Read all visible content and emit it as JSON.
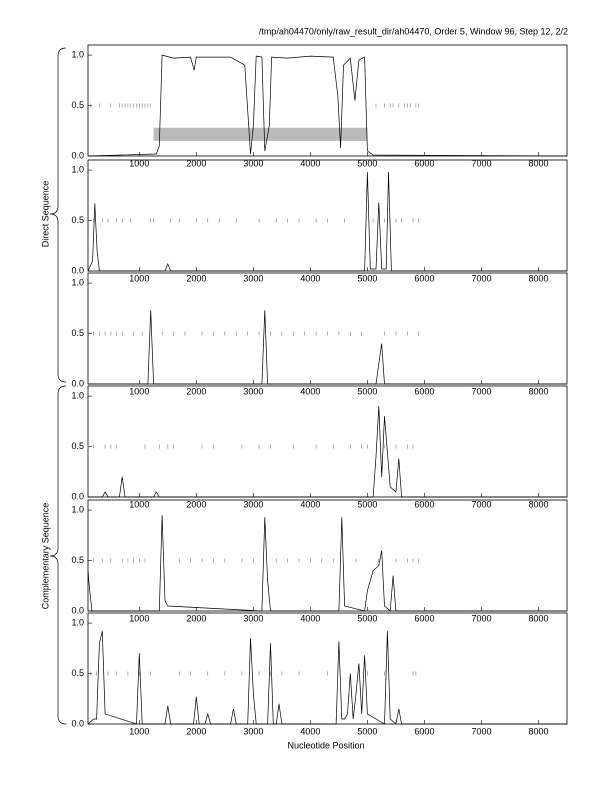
{
  "title": "/tmp/ah04470/only/raw_result_dir/ah04470, Order 5, Window 96, Step 12, 2/2",
  "groups": [
    "Direct Sequence",
    "Complementary Sequence"
  ],
  "xlabel": "Nucleotide Position",
  "chart_data": [
    {
      "type": "line",
      "x": [
        100,
        1300,
        1350,
        1400,
        1600,
        1900,
        1960,
        2000,
        2600,
        2850,
        2950,
        3000,
        3050,
        3150,
        3200,
        3280,
        3320,
        3600,
        4000,
        4400,
        4480,
        4530,
        4580,
        4700,
        4780,
        4850,
        4950,
        5000,
        5100,
        8500
      ],
      "values": [
        0,
        0.02,
        0.1,
        1.0,
        0.97,
        0.98,
        0.85,
        0.98,
        0.98,
        0.9,
        0.02,
        0.3,
        0.99,
        0.98,
        0.05,
        0.3,
        0.98,
        0.97,
        0.99,
        0.98,
        0.6,
        0.08,
        0.9,
        0.97,
        0.55,
        0.95,
        0.98,
        0.05,
        0.01,
        0
      ],
      "rug": [
        150,
        300,
        500,
        650,
        700,
        750,
        800,
        850,
        900,
        950,
        1000,
        1050,
        1100,
        1150,
        1200,
        5150,
        5300,
        5400,
        5450,
        5550,
        5650,
        5700,
        5750,
        5850,
        5900
      ],
      "rug_level": 0.5,
      "highlight": {
        "xlim": [
          1250,
          5000
        ],
        "ylim": [
          0.15,
          0.28
        ]
      },
      "xlim": [
        100,
        8500
      ],
      "ylim": [
        0,
        1.1
      ],
      "xticks": [
        1000,
        2000,
        3000,
        4000,
        5000,
        6000,
        7000,
        8000
      ],
      "yticks": [
        {
          "value": 0,
          "label": "0.0"
        },
        {
          "value": 0.5,
          "label": "0.5"
        },
        {
          "value": 1,
          "label": "1.0"
        }
      ],
      "color": "#000000"
    },
    {
      "type": "line",
      "x": [
        100,
        180,
        220,
        260,
        300,
        1450,
        1500,
        1550,
        4950,
        5000,
        5050,
        5150,
        5200,
        5250,
        5330,
        5370,
        5420,
        8500
      ],
      "values": [
        0,
        0.1,
        0.67,
        0.2,
        0,
        0,
        0.07,
        0,
        0,
        0.98,
        0.02,
        0.02,
        0.68,
        0.02,
        0.02,
        0.98,
        0,
        0
      ],
      "rug": [
        200,
        350,
        450,
        600,
        700,
        850,
        1200,
        1250,
        1550,
        1700,
        2000,
        2200,
        2400,
        2700,
        3100,
        3400,
        3600,
        3800,
        4100,
        4300,
        4600,
        5100,
        5300,
        5500,
        5600,
        5800,
        5900
      ],
      "rug_level": 0.5,
      "xlim": [
        100,
        8500
      ],
      "ylim": [
        0,
        1.1
      ],
      "xticks": [
        1000,
        2000,
        3000,
        4000,
        5000,
        6000,
        7000,
        8000
      ],
      "yticks": [
        {
          "value": 0,
          "label": "0.0"
        },
        {
          "value": 0.5,
          "label": "0.5"
        },
        {
          "value": 1,
          "label": "1.0"
        }
      ],
      "color": "#000000"
    },
    {
      "type": "line",
      "x": [
        100,
        1150,
        1200,
        1250,
        3150,
        3200,
        3250,
        5150,
        5200,
        5250,
        5300,
        8500
      ],
      "values": [
        0,
        0,
        0.73,
        0,
        0,
        0.73,
        0,
        0,
        0.2,
        0.4,
        0,
        0
      ],
      "rug": [
        200,
        300,
        400,
        500,
        600,
        700,
        900,
        1050,
        1400,
        1600,
        1800,
        2100,
        2300,
        2500,
        2700,
        2900,
        3100,
        3300,
        3500,
        3700,
        3900,
        4100,
        4300,
        4500,
        4700,
        4900,
        5300,
        5500,
        5700,
        5900
      ],
      "rug_level": 0.5,
      "xlim": [
        100,
        8500
      ],
      "ylim": [
        0,
        1.1
      ],
      "xticks": [
        1000,
        2000,
        3000,
        4000,
        5000,
        6000,
        7000,
        8000
      ],
      "yticks": [
        {
          "value": 0,
          "label": "0.0"
        },
        {
          "value": 0.5,
          "label": "0.5"
        },
        {
          "value": 1,
          "label": "1.0"
        }
      ],
      "color": "#000000"
    },
    {
      "type": "line",
      "x": [
        100,
        350,
        400,
        450,
        650,
        700,
        750,
        1250,
        1300,
        1350,
        5100,
        5150,
        5200,
        5250,
        5300,
        5400,
        5500,
        5550,
        5600,
        8500
      ],
      "values": [
        0,
        0,
        0.05,
        0,
        0,
        0.2,
        0,
        0,
        0.05,
        0,
        0,
        0.4,
        0.9,
        0.2,
        0.8,
        0.1,
        0.05,
        0.38,
        0,
        0
      ],
      "rug": [
        100,
        200,
        400,
        500,
        600,
        1100,
        1350,
        1500,
        1600,
        2100,
        2300,
        2800,
        3100,
        3300,
        3700,
        4100,
        4400,
        4700,
        4900,
        5000,
        5300,
        5500,
        5700,
        5800
      ],
      "rug_level": 0.5,
      "xlim": [
        100,
        8500
      ],
      "ylim": [
        0,
        1.1
      ],
      "xticks": [
        1000,
        2000,
        3000,
        4000,
        5000,
        6000,
        7000,
        8000
      ],
      "yticks": [
        {
          "value": 0,
          "label": "0.0"
        },
        {
          "value": 0.5,
          "label": "0.5"
        },
        {
          "value": 1,
          "label": "1.0"
        }
      ],
      "color": "#000000"
    },
    {
      "type": "line",
      "x": [
        100,
        130,
        170,
        1350,
        1400,
        1450,
        1500,
        3150,
        3200,
        3250,
        3300,
        4500,
        4550,
        4600,
        4950,
        5000,
        5100,
        5200,
        5250,
        5300,
        5400,
        5450,
        5500,
        8500
      ],
      "values": [
        0.4,
        0.2,
        0,
        0,
        0.95,
        0.1,
        0.05,
        0,
        0.93,
        0.3,
        0,
        0,
        0.93,
        0.05,
        0,
        0.2,
        0.4,
        0.45,
        0.6,
        0.05,
        0,
        0.35,
        0,
        0
      ],
      "rug": [
        200,
        350,
        500,
        700,
        800,
        900,
        1000,
        1100,
        1700,
        1900,
        2100,
        2300,
        2500,
        2800,
        3000,
        3400,
        3600,
        3800,
        4000,
        4200,
        4400,
        4800,
        5200,
        5500,
        5700,
        5800,
        5900
      ],
      "rug_level": 0.5,
      "xlim": [
        100,
        8500
      ],
      "ylim": [
        0,
        1.1
      ],
      "xticks": [
        1000,
        2000,
        3000,
        4000,
        5000,
        6000,
        7000,
        8000
      ],
      "yticks": [
        {
          "value": 0,
          "label": "0.0"
        },
        {
          "value": 0.5,
          "label": "0.5"
        },
        {
          "value": 1,
          "label": "1.0"
        }
      ],
      "color": "#000000"
    },
    {
      "type": "line",
      "x": [
        100,
        200,
        250,
        300,
        350,
        400,
        950,
        1000,
        1050,
        1450,
        1500,
        1550,
        1950,
        2000,
        2050,
        2150,
        2200,
        2250,
        2600,
        2650,
        2700,
        2900,
        2950,
        3000,
        3050,
        3250,
        3300,
        3350,
        3400,
        3450,
        3500,
        4450,
        4500,
        4550,
        4600,
        4650,
        4700,
        4750,
        4800,
        4850,
        4900,
        4950,
        5000,
        5300,
        5350,
        5400,
        5500,
        5550,
        5600,
        8500
      ],
      "values": [
        0,
        0.05,
        0.05,
        0.8,
        0.92,
        0.1,
        0,
        0.7,
        0,
        0,
        0.18,
        0,
        0,
        0.27,
        0,
        0,
        0.1,
        0,
        0,
        0.15,
        0,
        0,
        0.85,
        0.3,
        0,
        0,
        0.8,
        0,
        0,
        0.2,
        0,
        0,
        0.82,
        0.05,
        0.05,
        0.1,
        0.5,
        0.05,
        0.3,
        0.6,
        0.1,
        0.68,
        0.1,
        0,
        0.92,
        0.05,
        0,
        0.15,
        0,
        0
      ],
      "rug": [
        150,
        250,
        450,
        600,
        800,
        1000,
        1200,
        1700,
        1900,
        2200,
        2500,
        2800,
        3100,
        3300,
        3500,
        3800,
        4300,
        5000,
        5300,
        5800,
        5850
      ],
      "rug_level": 0.5,
      "xlim": [
        100,
        8500
      ],
      "ylim": [
        0,
        1.1
      ],
      "xticks": [
        1000,
        2000,
        3000,
        4000,
        5000,
        6000,
        7000,
        8000
      ],
      "yticks": [
        {
          "value": 0,
          "label": "0.0"
        },
        {
          "value": 0.5,
          "label": "0.5"
        },
        {
          "value": 1,
          "label": "1.0"
        }
      ],
      "color": "#000000"
    }
  ]
}
